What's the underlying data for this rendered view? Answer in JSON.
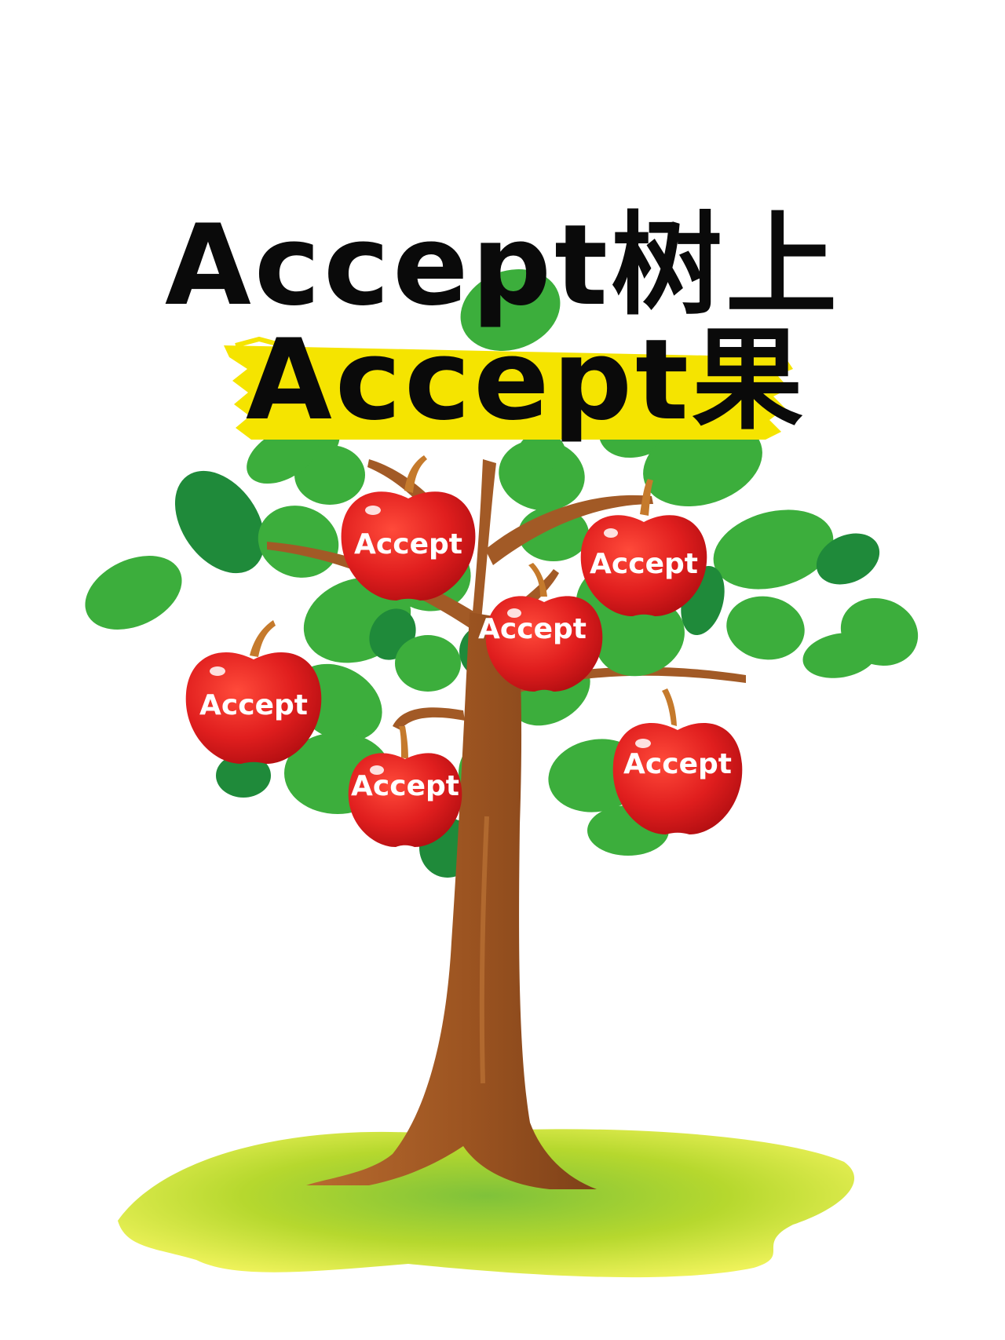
{
  "title": {
    "line1": "Accept树上",
    "line2": "Accept果"
  },
  "apples": [
    {
      "label": "Accept"
    },
    {
      "label": "Accept"
    },
    {
      "label": "Accept"
    },
    {
      "label": "Accept"
    },
    {
      "label": "Accept"
    },
    {
      "label": "Accept"
    }
  ],
  "colors": {
    "leaf": "#3cae3c",
    "leaf_dark": "#1f8a3a",
    "trunk": "#a25a26",
    "apple": "#e01e1e",
    "highlight": "#f5e400",
    "grass": "#b9d92c",
    "text": "#0a0a0a"
  }
}
